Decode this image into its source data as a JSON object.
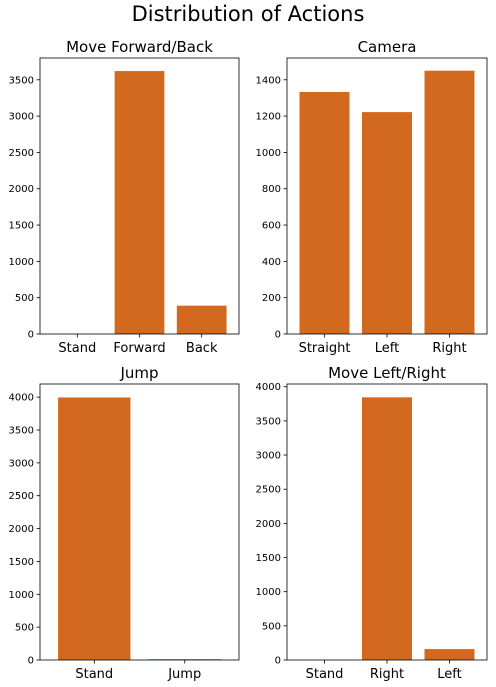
{
  "figure": {
    "title": "Distribution of Actions",
    "bar_color": "#d2691e"
  },
  "chart_data": [
    {
      "type": "bar",
      "title": "Move Forward/Back",
      "categories": [
        "Stand",
        "Forward",
        "Back"
      ],
      "values": [
        0,
        3620,
        390
      ],
      "ylim": [
        0,
        3800
      ],
      "yticks": [
        0,
        500,
        1000,
        1500,
        2000,
        2500,
        3000,
        3500
      ],
      "xlabel": "",
      "ylabel": ""
    },
    {
      "type": "bar",
      "title": "Camera",
      "categories": [
        "Straight",
        "Left",
        "Right"
      ],
      "values": [
        1333,
        1222,
        1450
      ],
      "ylim": [
        0,
        1520
      ],
      "yticks": [
        0,
        200,
        400,
        600,
        800,
        1000,
        1200,
        1400
      ],
      "xlabel": "",
      "ylabel": ""
    },
    {
      "type": "bar",
      "title": "Jump",
      "categories": [
        "Stand",
        "Jump"
      ],
      "values": [
        3995,
        12
      ],
      "ylim": [
        0,
        4200
      ],
      "yticks": [
        0,
        500,
        1000,
        1500,
        2000,
        2500,
        3000,
        3500,
        4000
      ],
      "xlabel": "",
      "ylabel": ""
    },
    {
      "type": "bar",
      "title": "Move Left/Right",
      "categories": [
        "Stand",
        "Right",
        "Left"
      ],
      "values": [
        0,
        3845,
        160
      ],
      "ylim": [
        0,
        4040
      ],
      "yticks": [
        0,
        500,
        1000,
        1500,
        2000,
        2500,
        3000,
        3500,
        4000
      ],
      "xlabel": "",
      "ylabel": ""
    }
  ]
}
